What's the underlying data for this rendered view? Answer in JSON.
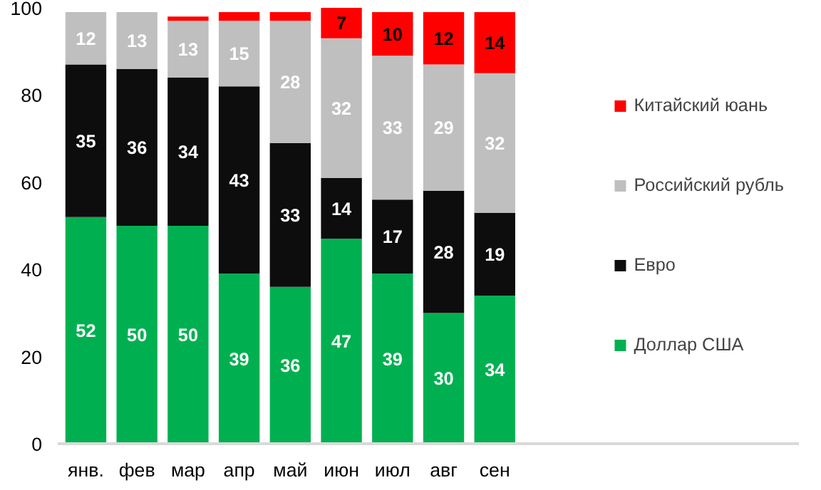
{
  "chart_data": {
    "type": "bar",
    "stacked": true,
    "categories": [
      "янв.",
      "фев",
      "мар",
      "апр",
      "май",
      "июн",
      "июл",
      "авг",
      "сен"
    ],
    "series": [
      {
        "name": "Доллар США",
        "color": "#00b050",
        "values": [
          52,
          50,
          50,
          39,
          36,
          47,
          39,
          30,
          34
        ],
        "value_labels": [
          "52",
          "50",
          "50",
          "39",
          "36",
          "47",
          "39",
          "30",
          "34"
        ]
      },
      {
        "name": "Евро",
        "color": "#0d0d0d",
        "values": [
          35,
          36,
          34,
          43,
          33,
          14,
          17,
          28,
          19
        ],
        "value_labels": [
          "35",
          "36",
          "34",
          "43",
          "33",
          "14",
          "17",
          "28",
          "19"
        ]
      },
      {
        "name": "Российский рубль",
        "color": "#bfbfbf",
        "values": [
          12,
          13,
          13,
          15,
          28,
          32,
          33,
          29,
          32
        ],
        "value_labels": [
          "12",
          "13",
          "13",
          "15",
          "28",
          "32",
          "33",
          "29",
          "32"
        ]
      },
      {
        "name": "Китайский юань",
        "color": "#ff0000",
        "values": [
          null,
          null,
          1,
          2,
          2,
          7,
          10,
          12,
          14
        ],
        "value_labels": [
          null,
          null,
          null,
          null,
          null,
          "7",
          "10",
          "12",
          "14"
        ]
      }
    ],
    "ylim": [
      0,
      100
    ],
    "yticks": [
      0,
      20,
      40,
      60,
      80,
      100
    ],
    "grid": false,
    "legend": "right"
  }
}
